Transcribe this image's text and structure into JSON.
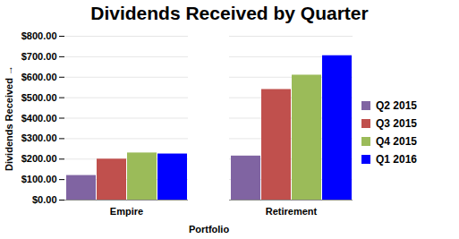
{
  "chart_data": {
    "type": "bar",
    "title": "Dividends Received by Quarter",
    "x_label": "Portfolio",
    "y_label": "Dividends Received",
    "categories": [
      "Empire",
      "Retirement"
    ],
    "series": [
      {
        "name": "Q2 2015",
        "color": "#8064a2",
        "values": [
          120,
          215
        ]
      },
      {
        "name": "Q3 2015",
        "color": "#c0504d",
        "values": [
          200,
          540
        ]
      },
      {
        "name": "Q4 2015",
        "color": "#9bbb59",
        "values": [
          230,
          610
        ]
      },
      {
        "name": "Q1 2016",
        "color": "#0000ff",
        "values": [
          225,
          705
        ]
      }
    ],
    "ylim": [
      0,
      800
    ],
    "yticks": [
      {
        "value": 0,
        "label": "$0.00"
      },
      {
        "value": 100,
        "label": "$100.00"
      },
      {
        "value": 200,
        "label": "$200.00"
      },
      {
        "value": 300,
        "label": "$300.00"
      },
      {
        "value": 400,
        "label": "$400.00"
      },
      {
        "value": 500,
        "label": "$500.00"
      },
      {
        "value": 600,
        "label": "$600.00"
      },
      {
        "value": 700,
        "label": "$700.00"
      },
      {
        "value": 800,
        "label": "$800.00"
      }
    ],
    "grid": true,
    "legend": "right"
  }
}
